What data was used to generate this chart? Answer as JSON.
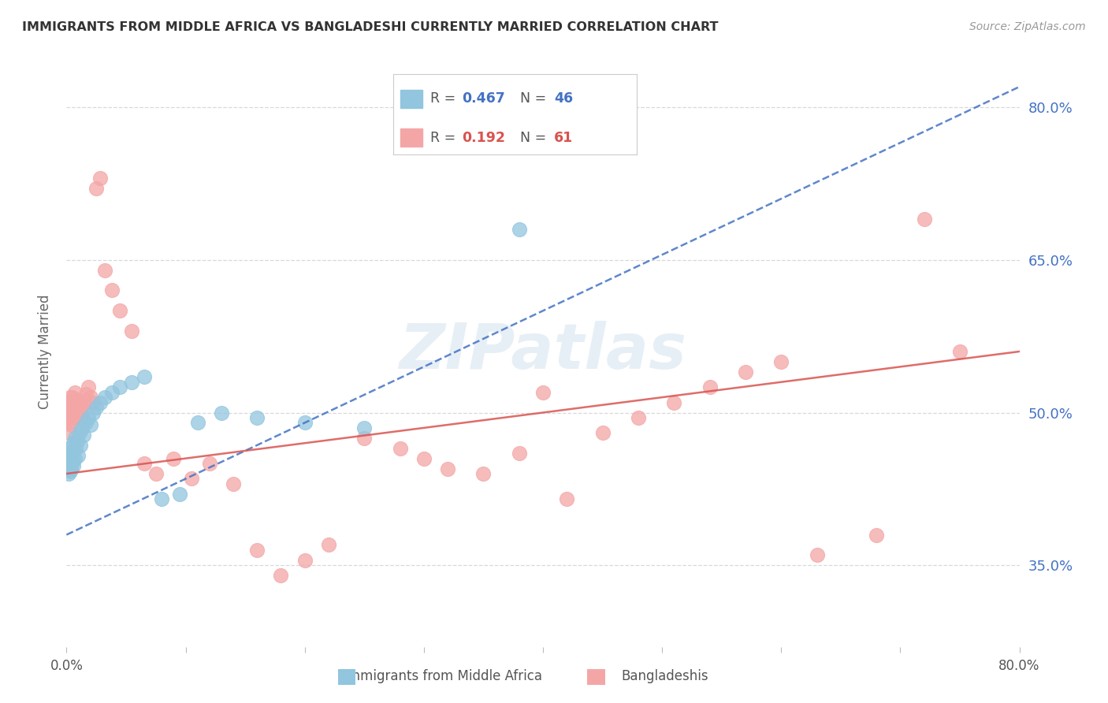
{
  "title": "IMMIGRANTS FROM MIDDLE AFRICA VS BANGLADESHI CURRENTLY MARRIED CORRELATION CHART",
  "source": "Source: ZipAtlas.com",
  "ylabel": "Currently Married",
  "watermark": "ZIPatlas",
  "xlim": [
    0.0,
    0.8
  ],
  "ylim": [
    0.27,
    0.85
  ],
  "yticks_right": [
    0.35,
    0.5,
    0.65,
    0.8
  ],
  "ytick_labels_right": [
    "35.0%",
    "50.0%",
    "65.0%",
    "80.0%"
  ],
  "series1_color": "#92c5de",
  "series2_color": "#f4a6a6",
  "series1_label": "Immigrants from Middle Africa",
  "series2_label": "Bangladeshis",
  "R1": 0.467,
  "N1": 46,
  "R2": 0.192,
  "N2": 61,
  "legend_R1_color": "#4472c4",
  "legend_R2_color": "#d9534f",
  "trendline1_color": "#4472c4",
  "trendline2_color": "#d9534f",
  "background_color": "#ffffff",
  "grid_color": "#d8d8d8",
  "scatter1_x": [
    0.001,
    0.001,
    0.001,
    0.001,
    0.002,
    0.002,
    0.002,
    0.002,
    0.002,
    0.003,
    0.003,
    0.003,
    0.004,
    0.004,
    0.005,
    0.005,
    0.006,
    0.006,
    0.007,
    0.007,
    0.008,
    0.009,
    0.01,
    0.011,
    0.012,
    0.013,
    0.014,
    0.016,
    0.018,
    0.02,
    0.022,
    0.025,
    0.028,
    0.032,
    0.038,
    0.045,
    0.055,
    0.065,
    0.08,
    0.095,
    0.11,
    0.13,
    0.16,
    0.2,
    0.25,
    0.38
  ],
  "scatter1_y": [
    0.445,
    0.45,
    0.455,
    0.46,
    0.44,
    0.447,
    0.453,
    0.458,
    0.465,
    0.442,
    0.448,
    0.456,
    0.445,
    0.46,
    0.452,
    0.462,
    0.448,
    0.47,
    0.455,
    0.475,
    0.465,
    0.472,
    0.458,
    0.48,
    0.468,
    0.485,
    0.478,
    0.49,
    0.495,
    0.488,
    0.5,
    0.505,
    0.51,
    0.515,
    0.52,
    0.525,
    0.53,
    0.535,
    0.415,
    0.42,
    0.49,
    0.5,
    0.495,
    0.49,
    0.485,
    0.68
  ],
  "scatter2_x": [
    0.001,
    0.001,
    0.002,
    0.002,
    0.002,
    0.003,
    0.003,
    0.003,
    0.004,
    0.004,
    0.005,
    0.005,
    0.006,
    0.006,
    0.007,
    0.008,
    0.009,
    0.01,
    0.011,
    0.012,
    0.013,
    0.014,
    0.015,
    0.016,
    0.018,
    0.02,
    0.022,
    0.025,
    0.028,
    0.032,
    0.038,
    0.045,
    0.055,
    0.065,
    0.075,
    0.09,
    0.105,
    0.12,
    0.14,
    0.16,
    0.18,
    0.2,
    0.22,
    0.25,
    0.28,
    0.3,
    0.32,
    0.35,
    0.38,
    0.4,
    0.42,
    0.45,
    0.48,
    0.51,
    0.54,
    0.57,
    0.6,
    0.63,
    0.68,
    0.72,
    0.75
  ],
  "scatter2_y": [
    0.495,
    0.51,
    0.48,
    0.49,
    0.505,
    0.5,
    0.51,
    0.515,
    0.488,
    0.5,
    0.505,
    0.515,
    0.495,
    0.51,
    0.52,
    0.508,
    0.5,
    0.512,
    0.495,
    0.502,
    0.498,
    0.508,
    0.512,
    0.518,
    0.525,
    0.515,
    0.51,
    0.72,
    0.73,
    0.64,
    0.62,
    0.6,
    0.58,
    0.45,
    0.44,
    0.455,
    0.435,
    0.45,
    0.43,
    0.365,
    0.34,
    0.355,
    0.37,
    0.475,
    0.465,
    0.455,
    0.445,
    0.44,
    0.46,
    0.52,
    0.415,
    0.48,
    0.495,
    0.51,
    0.525,
    0.54,
    0.55,
    0.36,
    0.38,
    0.69,
    0.56
  ],
  "trendline1_x": [
    0.0,
    0.8
  ],
  "trendline1_y": [
    0.38,
    0.82
  ],
  "trendline2_x": [
    0.0,
    0.8
  ],
  "trendline2_y": [
    0.44,
    0.56
  ]
}
